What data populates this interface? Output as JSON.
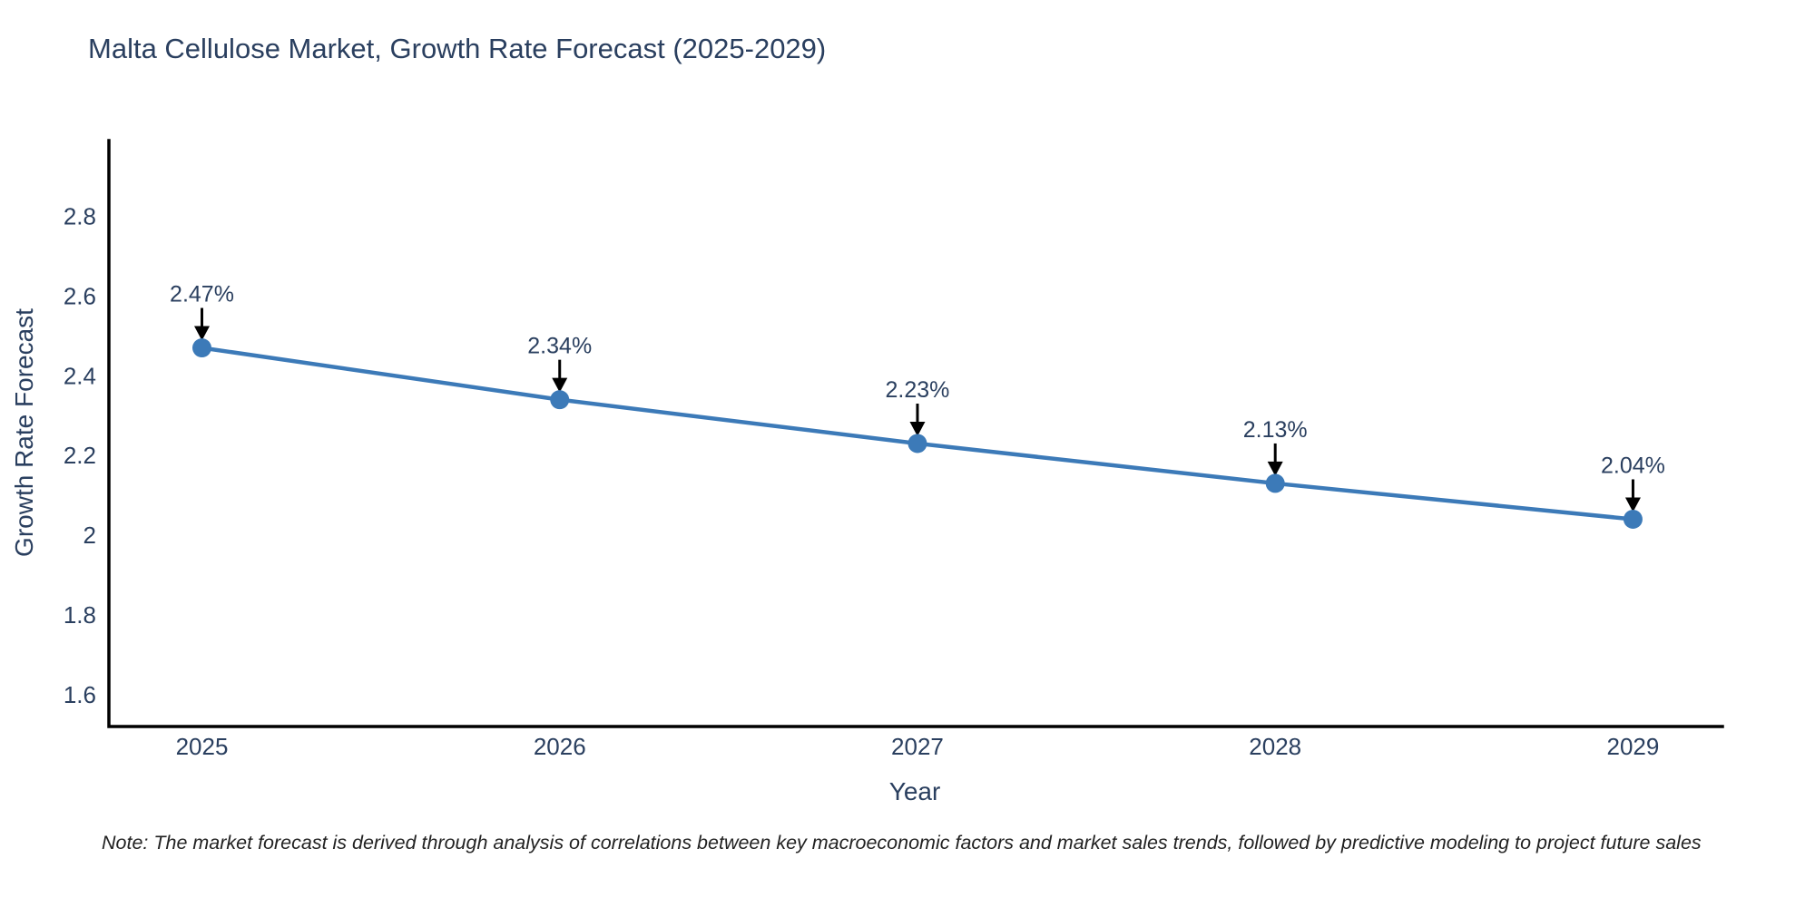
{
  "title": "Malta Cellulose Market, Growth Rate Forecast (2025-2029)",
  "note": "Note: The market forecast is derived through analysis of correlations between key macroeconomic factors and market sales trends, followed by predictive modeling to project future sales",
  "colors": {
    "text": "#2a3f5f",
    "line": "#3c7ab8",
    "marker": "#3c7ab8",
    "axis": "#000000",
    "arrow": "#000000",
    "note_text": "#222222",
    "background": "#ffffff"
  },
  "chart_data": {
    "type": "line",
    "title": "Malta Cellulose Market, Growth Rate Forecast (2025-2029)",
    "xlabel": "Year",
    "ylabel": "Growth Rate Forecast",
    "x": [
      2025,
      2026,
      2027,
      2028,
      2029
    ],
    "series": [
      {
        "name": "Growth Rate Forecast",
        "values": [
          2.47,
          2.34,
          2.23,
          2.13,
          2.04
        ]
      }
    ],
    "point_labels": [
      "2.47%",
      "2.34%",
      "2.23%",
      "2.13%",
      "2.04%"
    ],
    "y_ticks": [
      2.8,
      2.6,
      2.4,
      2.2,
      2,
      1.8,
      1.6
    ],
    "y_tick_labels": [
      "2.8",
      "2.6",
      "2.4",
      "2.2",
      "2",
      "1.8",
      "1.6"
    ],
    "x_tick_labels": [
      "2025",
      "2026",
      "2027",
      "2028",
      "2029"
    ],
    "xlim": [
      2024.74,
      2029.25
    ],
    "ylim": [
      1.52,
      2.99
    ],
    "grid": false,
    "legend": "none",
    "annotation_style": "down-arrow"
  }
}
